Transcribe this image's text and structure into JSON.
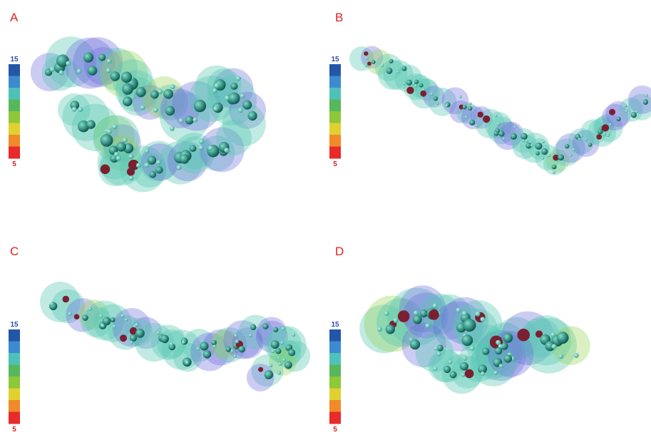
{
  "panels": [
    {
      "label": "A",
      "scale_max": "15",
      "scale_min": "5"
    },
    {
      "label": "B",
      "scale_max": "15",
      "scale_min": "5"
    },
    {
      "label": "C",
      "scale_max": "15",
      "scale_min": "5"
    },
    {
      "label": "D",
      "scale_max": "15",
      "scale_min": "5"
    }
  ]
}
